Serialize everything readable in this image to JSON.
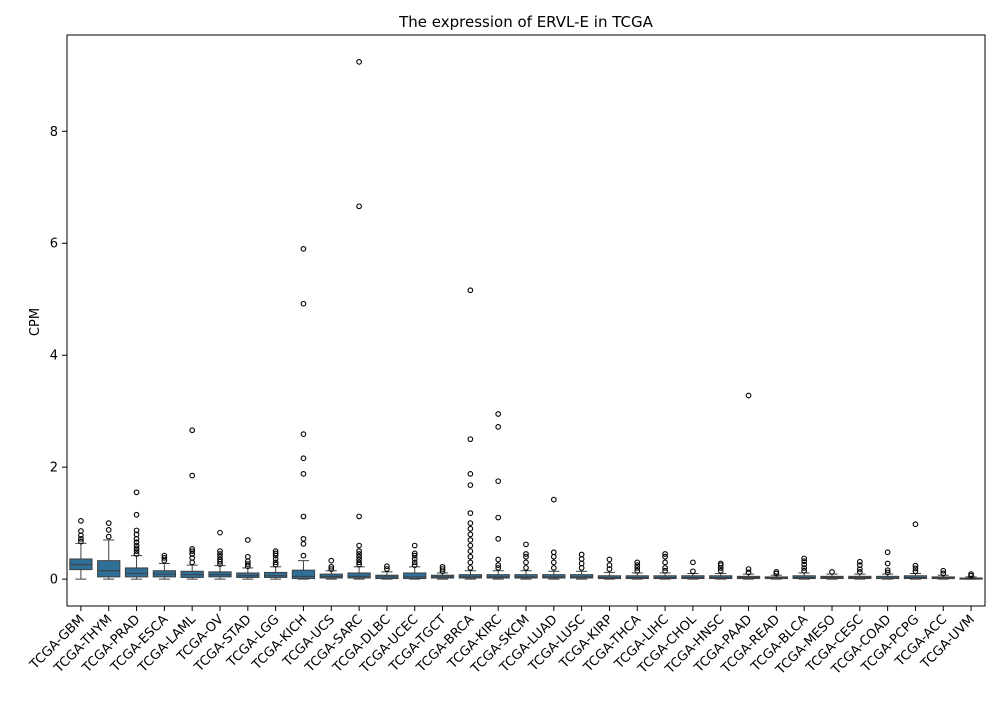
{
  "chart_data": {
    "type": "box",
    "title": "The expression of ERVL-E in TCGA",
    "xlabel": "",
    "ylabel": "CPM",
    "ylim": [
      -0.48,
      9.72
    ],
    "yticks": [
      0,
      2,
      4,
      6,
      8
    ],
    "grid": false,
    "legend": "none",
    "box_color": "#2f6f98",
    "categories": [
      "TCGA-GBM",
      "TCGA-THYM",
      "TCGA-PRAD",
      "TCGA-ESCA",
      "TCGA-LAML",
      "TCGA-OV",
      "TCGA-STAD",
      "TCGA-LGG",
      "TCGA-KICH",
      "TCGA-UCS",
      "TCGA-SARC",
      "TCGA-DLBC",
      "TCGA-UCEC",
      "TCGA-TGCT",
      "TCGA-BRCA",
      "TCGA-KIRC",
      "TCGA-SKCM",
      "TCGA-LUAD",
      "TCGA-LUSC",
      "TCGA-KIRP",
      "TCGA-THCA",
      "TCGA-LIHC",
      "TCGA-CHOL",
      "TCGA-HNSC",
      "TCGA-PAAD",
      "TCGA-READ",
      "TCGA-BLCA",
      "TCGA-MESO",
      "TCGA-CESC",
      "TCGA-COAD",
      "TCGA-PCPG",
      "TCGA-ACC",
      "TCGA-UVM"
    ],
    "boxes": [
      {
        "min": 0.0,
        "q1": 0.17,
        "median": 0.26,
        "q3": 0.36,
        "max": 0.64,
        "outliers": [
          0.67,
          0.72,
          0.78,
          0.86,
          1.04
        ]
      },
      {
        "min": 0.0,
        "q1": 0.04,
        "median": 0.15,
        "q3": 0.33,
        "max": 0.7,
        "outliers": [
          0.76,
          0.88,
          1.0
        ]
      },
      {
        "min": 0.0,
        "q1": 0.04,
        "median": 0.1,
        "q3": 0.2,
        "max": 0.42,
        "outliers": [
          0.45,
          0.5,
          0.55,
          0.6,
          0.66,
          0.72,
          0.8,
          0.87,
          1.15,
          1.55
        ]
      },
      {
        "min": 0.0,
        "q1": 0.04,
        "median": 0.09,
        "q3": 0.15,
        "max": 0.28,
        "outliers": [
          0.33,
          0.38,
          0.42
        ]
      },
      {
        "min": 0.0,
        "q1": 0.03,
        "median": 0.08,
        "q3": 0.14,
        "max": 0.25,
        "outliers": [
          0.3,
          0.38,
          0.45,
          0.5,
          0.54,
          1.85,
          2.66
        ]
      },
      {
        "min": 0.0,
        "q1": 0.04,
        "median": 0.08,
        "q3": 0.13,
        "max": 0.24,
        "outliers": [
          0.27,
          0.31,
          0.35,
          0.4,
          0.45,
          0.5,
          0.83
        ]
      },
      {
        "min": 0.0,
        "q1": 0.03,
        "median": 0.06,
        "q3": 0.11,
        "max": 0.2,
        "outliers": [
          0.23,
          0.27,
          0.32,
          0.4,
          0.7
        ]
      },
      {
        "min": 0.0,
        "q1": 0.03,
        "median": 0.06,
        "q3": 0.12,
        "max": 0.22,
        "outliers": [
          0.26,
          0.3,
          0.36,
          0.42,
          0.46,
          0.5
        ]
      },
      {
        "min": 0.0,
        "q1": 0.01,
        "median": 0.05,
        "q3": 0.16,
        "max": 0.33,
        "outliers": [
          0.42,
          0.63,
          0.72,
          1.12,
          1.88,
          2.16,
          2.59,
          4.92,
          5.9
        ]
      },
      {
        "min": 0.0,
        "q1": 0.02,
        "median": 0.05,
        "q3": 0.09,
        "max": 0.15,
        "outliers": [
          0.18,
          0.22,
          0.33
        ]
      },
      {
        "min": 0.0,
        "q1": 0.02,
        "median": 0.05,
        "q3": 0.11,
        "max": 0.22,
        "outliers": [
          0.26,
          0.3,
          0.35,
          0.4,
          0.45,
          0.5,
          0.6,
          1.12,
          6.66,
          9.24
        ]
      },
      {
        "min": 0.0,
        "q1": 0.01,
        "median": 0.04,
        "q3": 0.07,
        "max": 0.13,
        "outliers": [
          0.18,
          0.23
        ]
      },
      {
        "min": 0.0,
        "q1": 0.01,
        "median": 0.04,
        "q3": 0.11,
        "max": 0.22,
        "outliers": [
          0.25,
          0.3,
          0.36,
          0.42,
          0.46,
          0.6
        ]
      },
      {
        "min": 0.0,
        "q1": 0.02,
        "median": 0.04,
        "q3": 0.07,
        "max": 0.11,
        "outliers": [
          0.14,
          0.18,
          0.22
        ]
      },
      {
        "min": 0.0,
        "q1": 0.02,
        "median": 0.04,
        "q3": 0.08,
        "max": 0.15,
        "outliers": [
          0.2,
          0.3,
          0.4,
          0.5,
          0.6,
          0.7,
          0.8,
          0.9,
          1.0,
          1.18,
          1.68,
          1.88,
          2.5,
          5.16
        ]
      },
      {
        "min": 0.0,
        "q1": 0.02,
        "median": 0.04,
        "q3": 0.08,
        "max": 0.15,
        "outliers": [
          0.2,
          0.25,
          0.35,
          0.72,
          1.1,
          1.75,
          2.72,
          2.95
        ]
      },
      {
        "min": 0.0,
        "q1": 0.02,
        "median": 0.04,
        "q3": 0.08,
        "max": 0.15,
        "outliers": [
          0.2,
          0.3,
          0.4,
          0.45,
          0.62
        ]
      },
      {
        "min": 0.0,
        "q1": 0.02,
        "median": 0.04,
        "q3": 0.08,
        "max": 0.14,
        "outliers": [
          0.2,
          0.3,
          0.4,
          0.48,
          1.42
        ]
      },
      {
        "min": 0.0,
        "q1": 0.02,
        "median": 0.04,
        "q3": 0.08,
        "max": 0.14,
        "outliers": [
          0.2,
          0.28,
          0.36,
          0.44
        ]
      },
      {
        "min": 0.0,
        "q1": 0.01,
        "median": 0.03,
        "q3": 0.06,
        "max": 0.12,
        "outliers": [
          0.18,
          0.25,
          0.35
        ]
      },
      {
        "min": 0.0,
        "q1": 0.01,
        "median": 0.03,
        "q3": 0.06,
        "max": 0.11,
        "outliers": [
          0.15,
          0.2,
          0.25,
          0.3
        ]
      },
      {
        "min": 0.0,
        "q1": 0.01,
        "median": 0.03,
        "q3": 0.06,
        "max": 0.11,
        "outliers": [
          0.15,
          0.2,
          0.3,
          0.4,
          0.45
        ]
      },
      {
        "min": 0.0,
        "q1": 0.01,
        "median": 0.03,
        "q3": 0.06,
        "max": 0.1,
        "outliers": [
          0.14,
          0.3
        ]
      },
      {
        "min": 0.0,
        "q1": 0.01,
        "median": 0.03,
        "q3": 0.06,
        "max": 0.1,
        "outliers": [
          0.15,
          0.2,
          0.25,
          0.28
        ]
      },
      {
        "min": 0.0,
        "q1": 0.01,
        "median": 0.03,
        "q3": 0.05,
        "max": 0.09,
        "outliers": [
          0.12,
          0.18,
          3.28
        ]
      },
      {
        "min": 0.0,
        "q1": 0.01,
        "median": 0.02,
        "q3": 0.04,
        "max": 0.07,
        "outliers": [
          0.1,
          0.13
        ]
      },
      {
        "min": 0.0,
        "q1": 0.01,
        "median": 0.03,
        "q3": 0.06,
        "max": 0.11,
        "outliers": [
          0.15,
          0.2,
          0.26,
          0.32,
          0.37
        ]
      },
      {
        "min": 0.0,
        "q1": 0.01,
        "median": 0.03,
        "q3": 0.05,
        "max": 0.09,
        "outliers": [
          0.13
        ]
      },
      {
        "min": 0.0,
        "q1": 0.01,
        "median": 0.03,
        "q3": 0.05,
        "max": 0.09,
        "outliers": [
          0.13,
          0.18,
          0.25,
          0.31
        ]
      },
      {
        "min": 0.0,
        "q1": 0.01,
        "median": 0.02,
        "q3": 0.05,
        "max": 0.09,
        "outliers": [
          0.12,
          0.16,
          0.28,
          0.48
        ]
      },
      {
        "min": 0.0,
        "q1": 0.01,
        "median": 0.03,
        "q3": 0.06,
        "max": 0.1,
        "outliers": [
          0.14,
          0.19,
          0.24,
          0.98
        ]
      },
      {
        "min": 0.0,
        "q1": 0.01,
        "median": 0.02,
        "q3": 0.04,
        "max": 0.07,
        "outliers": [
          0.1,
          0.15
        ]
      },
      {
        "min": 0.0,
        "q1": 0.0,
        "median": 0.01,
        "q3": 0.02,
        "max": 0.04,
        "outliers": [
          0.06,
          0.09
        ]
      }
    ]
  }
}
